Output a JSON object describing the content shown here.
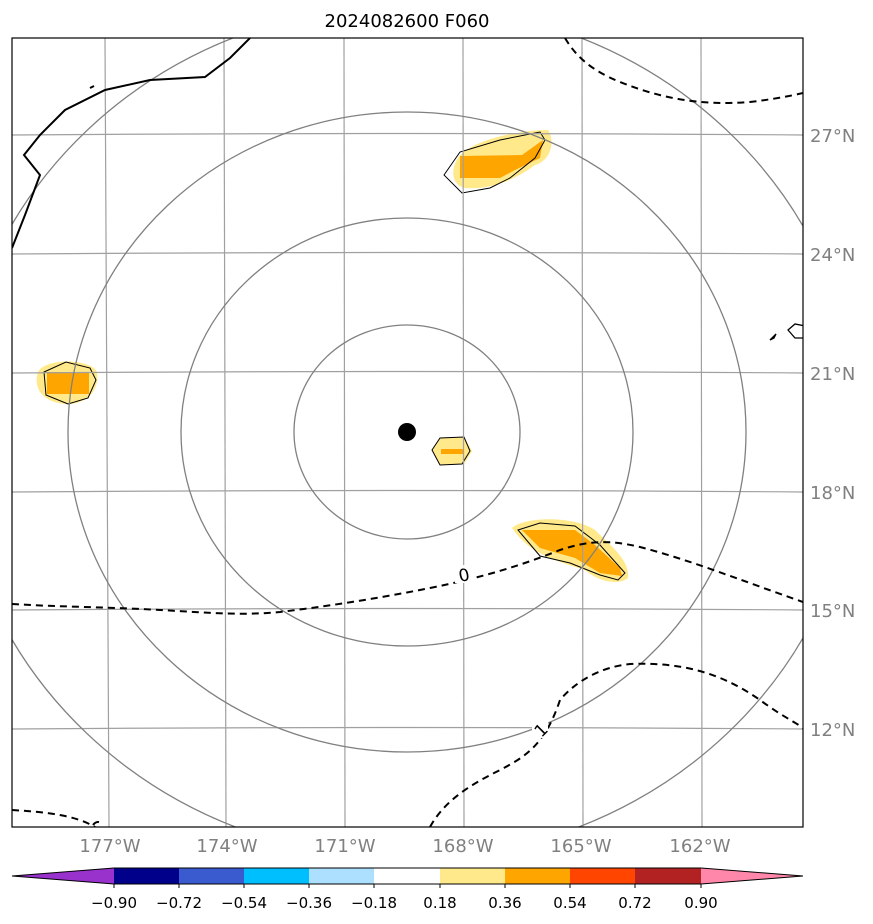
{
  "title": "2024082600 F060",
  "chart_data": {
    "type": "map",
    "title": "2024082600 F060",
    "projection": "polar stereographic",
    "lat_ticks": [
      "27°N",
      "24°N",
      "21°N",
      "18°N",
      "15°N",
      "12°N"
    ],
    "lon_ticks": [
      "177°W",
      "174°W",
      "171°W",
      "168°W",
      "165°W",
      "162°W"
    ],
    "center_marker": {
      "lon": -169.5,
      "lat": 19.5
    },
    "range_rings": 4,
    "filled_regions": [
      {
        "name": "north-blob",
        "min_level": 0.36
      },
      {
        "name": "west-blob",
        "min_level": 0.36
      },
      {
        "name": "center-blob",
        "min_level": 0.36
      },
      {
        "name": "southeast-blob",
        "min_level": 0.36
      }
    ],
    "dashed_contours": [
      {
        "label": "0"
      },
      {
        "label": "1"
      }
    ],
    "colorbar": {
      "extend": "both",
      "ticks": [
        "−0.90",
        "−0.72",
        "−0.54",
        "−0.36",
        "−0.18",
        "0.18",
        "0.36",
        "0.54",
        "0.72",
        "0.90"
      ],
      "colors": [
        "#9932CC",
        "#00008B",
        "#3A5BCF",
        "#00BFFF",
        "#ADDFFF",
        "#FFFFFF",
        "#FFE98A",
        "#FFA500",
        "#FF4500",
        "#B22222",
        "#FF88AA"
      ]
    },
    "colors": {
      "coast": "#000000",
      "grid": "#A0A0A0",
      "ring": "#808080"
    }
  }
}
